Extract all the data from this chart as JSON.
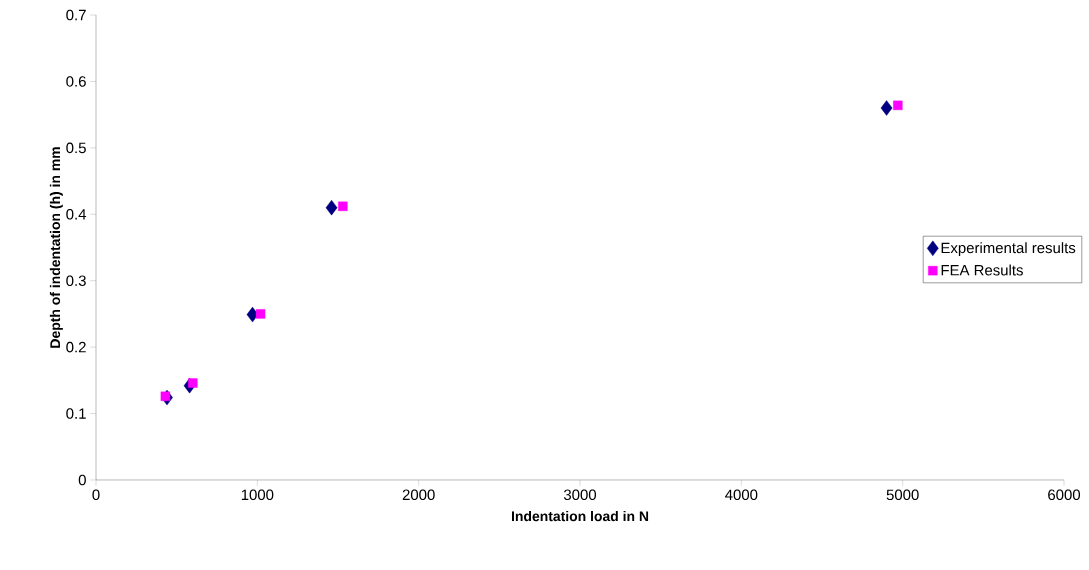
{
  "chart_data": {
    "type": "scatter",
    "xlabel": "Indentation load in N",
    "ylabel": "Depth of indentation (h) in mm",
    "xlim": [
      0,
      6000
    ],
    "ylim": [
      0,
      0.7
    ],
    "xticks": [
      0,
      1000,
      2000,
      3000,
      4000,
      5000,
      6000
    ],
    "yticks": [
      0,
      0.1,
      0.2,
      0.3,
      0.4,
      0.5,
      0.6,
      0.7
    ],
    "legend": "right",
    "series": [
      {
        "name": "Experimental results",
        "color": "#000080",
        "marker": "diamond",
        "x": [
          440,
          580,
          970,
          1460,
          4900
        ],
        "values": [
          0.124,
          0.142,
          0.249,
          0.41,
          0.56
        ]
      },
      {
        "name": "FEA Results",
        "color": "#ff00ff",
        "marker": "square",
        "x": [
          430,
          600,
          1020,
          1530,
          4970
        ],
        "values": [
          0.126,
          0.146,
          0.25,
          0.412,
          0.564
        ]
      }
    ]
  }
}
